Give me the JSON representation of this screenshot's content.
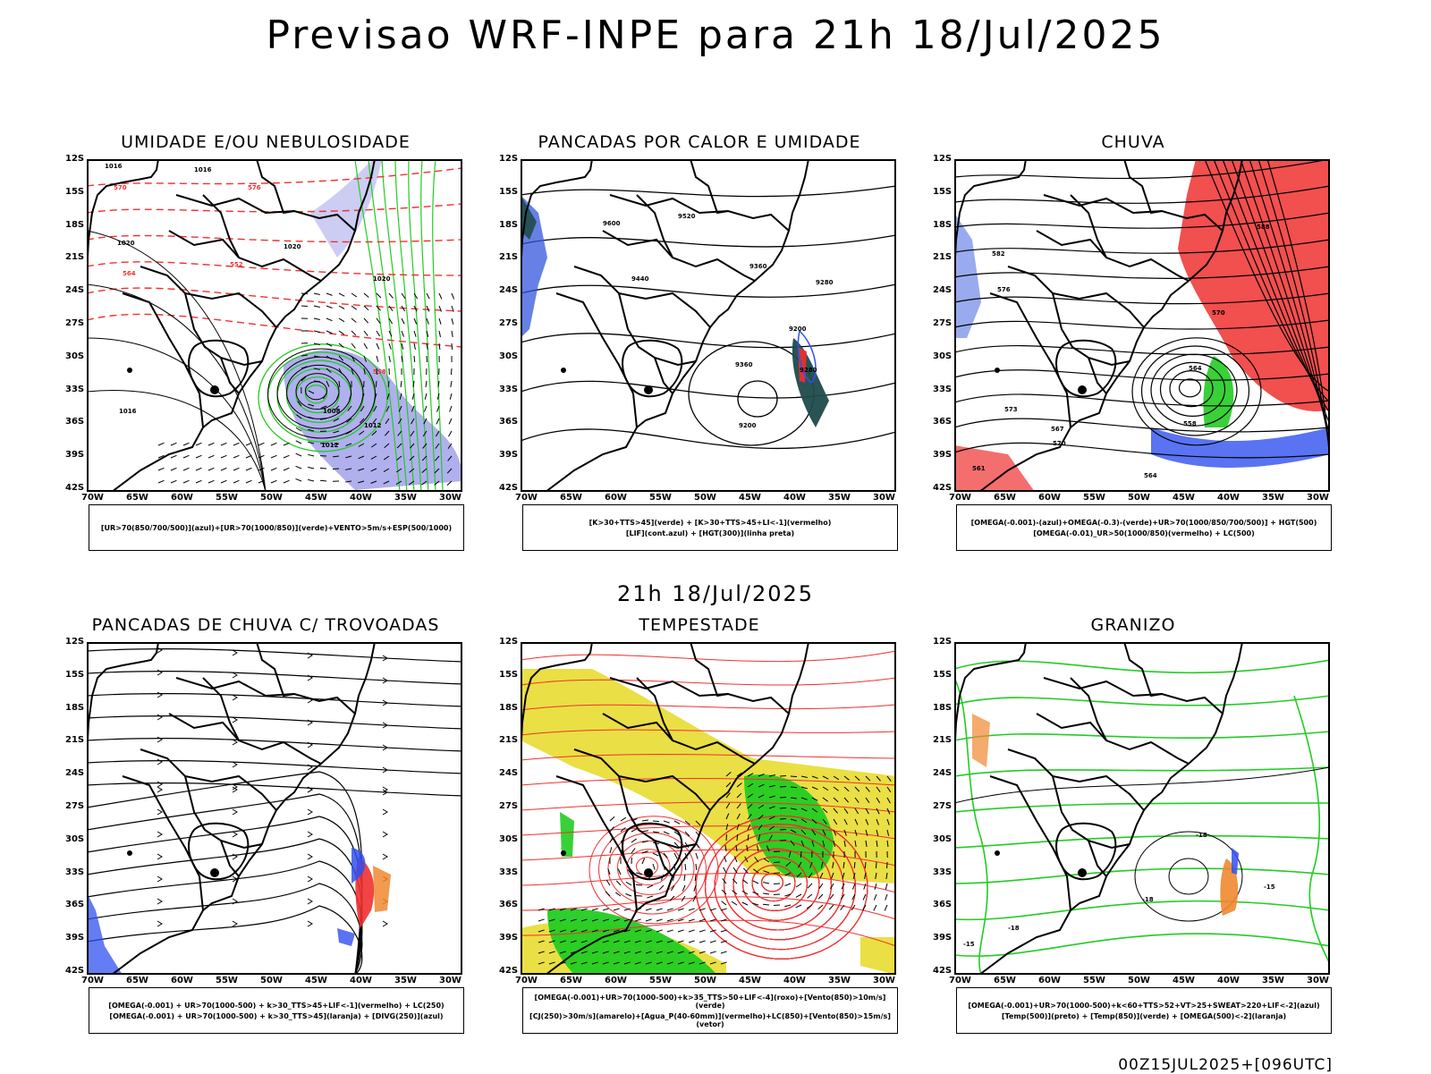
{
  "title": "Previsao WRF-INPE  para 21h 18/Jul/2025",
  "mid_date": "21h 18/Jul/2025",
  "footer": "00Z15JUL2025+[096UTC]",
  "lat_labels": [
    "12S",
    "15S",
    "18S",
    "21S",
    "24S",
    "27S",
    "30S",
    "33S",
    "36S",
    "39S",
    "42S"
  ],
  "lon_labels": [
    "70W",
    "65W",
    "60W",
    "55W",
    "50W",
    "45W",
    "40W",
    "35W",
    "30W"
  ],
  "colors": {
    "green": "#22cc22",
    "red": "#f03030",
    "blue": "#3050f0",
    "yellow": "#e8dc30",
    "orange": "#f08830"
  },
  "panels": [
    {
      "title": "UMIDADE E/OU NEBULOSIDADE",
      "legend": [
        "[UR>70(850/700/500)](azul)+[UR>70(1000/850)](verde)+VENTO>5m/s+ESP(500/1000)"
      ],
      "contour_labels": [
        "1016",
        "1016",
        "1020",
        "1020",
        "1020",
        "1012",
        "1008",
        "1012",
        "1016",
        "570",
        "576",
        "564",
        "558",
        "552"
      ]
    },
    {
      "title": "PANCADAS POR CALOR E UMIDADE",
      "legend": [
        "[K>30+TTS>45](verde) + [K>30+TTS>45+LI<-1](vermelho)",
        "[LIF](cont.azul) + [HGT(300)](linha preta)"
      ],
      "contour_labels": [
        "9600",
        "9520",
        "9440",
        "9360",
        "9280",
        "9200",
        "9360",
        "9280",
        "9200"
      ]
    },
    {
      "title": "CHUVA",
      "legend": [
        "[OMEGA(-0.001)-(azul)+OMEGA(-0.3)-(verde)+UR>70(1000/850/700/500)] + HGT(500)",
        "[OMEGA(-0.01)_UR>50(1000/850)(vermelho) + LC(500)"
      ],
      "contour_labels": [
        "588",
        "582",
        "576",
        "570",
        "564",
        "558",
        "573",
        "567",
        "561",
        "570",
        "564"
      ]
    },
    {
      "title": "PANCADAS DE CHUVA C/ TROVOADAS",
      "legend": [
        "[OMEGA(-0.001) + UR>70(1000-500) + k>30_TTS>45+LIF<-1](vermelho) + LC(250)",
        "[OMEGA(-0.001) + UR>70(1000-500) + k>30_TTS>45](laranja) + [DIVG(250)](azul)"
      ],
      "contour_labels": []
    },
    {
      "title": "TEMPESTADE",
      "legend": [
        "[OMEGA(-0.001)+UR>70(1000-500)+k>35_TTS>50+LIF<-4](roxo)+[Vento(850)>10m/s](verde)",
        "[CJ(250)>30m/s](amarelo)+[Agua_P(40-60mm)](vermelho)+LC(850)+[Vento(850)>15m/s](vetor)"
      ],
      "contour_labels": []
    },
    {
      "title": "GRANIZO",
      "legend": [
        "[OMEGA(-0.001)+UR>70(1000-500)+k<60+TTS>52+VT>25+SWEAT>220+LIF<-2](azul)",
        "[Temp(500)](preto) + [Temp(850)](verde) + [OMEGA(500)<-2](laranja)"
      ],
      "contour_labels": [
        "-18",
        "-15",
        "-18",
        "-18",
        "-15"
      ]
    }
  ]
}
